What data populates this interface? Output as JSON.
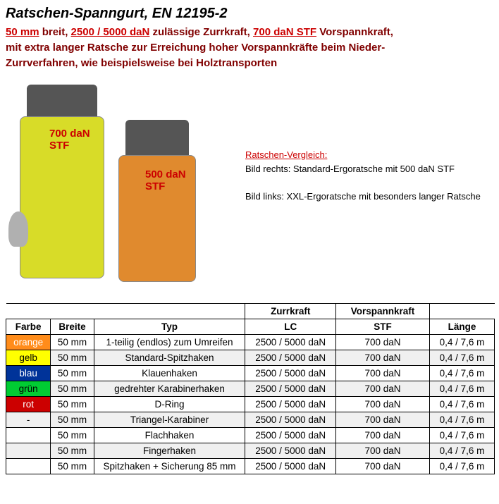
{
  "title": "Ratschen-Spanngurt, EN 12195-2",
  "subtitle": {
    "p1a": "50 mm",
    "p1b": " breit, ",
    "p1c": "2500 / 5000 daN",
    "p1d": " zulässige Zurrkraft, ",
    "p1e": "700 daN STF",
    "p1f": " Vorspannkraft,",
    "p2": "mit extra langer Ratsche zur Erreichung hoher Vorspannkräfte beim Nieder-",
    "p3": "Zurrverfahren, wie beispielsweise bei Holztransporten"
  },
  "labels": {
    "stf1a": "700 daN",
    "stf1b": "STF",
    "stf2a": "500 daN",
    "stf2b": "STF"
  },
  "desc": {
    "heading": "Ratschen-Vergleich:",
    "line1": "Bild rechts: Standard-Ergoratsche mit 500 daN STF",
    "line2": "Bild links: XXL-Ergoratsche mit besonders langer Ratsche"
  },
  "table": {
    "header_top": {
      "zurrkraft": "Zurrkraft",
      "vorspannkraft": "Vorspannkraft"
    },
    "header": {
      "farbe": "Farbe",
      "breite": "Breite",
      "typ": "Typ",
      "lc": "LC",
      "stf": "STF",
      "laenge": "Länge"
    },
    "rows": [
      {
        "farbe": "orange",
        "farbe_bg": "#ff8c1a",
        "farbe_fg": "#ffffff",
        "breite": "50 mm",
        "typ": "1-teilig (endlos) zum Umreifen",
        "lc": "2500 / 5000 daN",
        "stf": "700 daN",
        "laenge": "0,4 / 7,6 m",
        "alt": false
      },
      {
        "farbe": "gelb",
        "farbe_bg": "#ffff00",
        "farbe_fg": "#000000",
        "breite": "50 mm",
        "typ": "Standard-Spitzhaken",
        "lc": "2500 / 5000 daN",
        "stf": "700 daN",
        "laenge": "0,4 / 7,6 m",
        "alt": true
      },
      {
        "farbe": "blau",
        "farbe_bg": "#003399",
        "farbe_fg": "#ffffff",
        "breite": "50 mm",
        "typ": "Klauenhaken",
        "lc": "2500 / 5000 daN",
        "stf": "700 daN",
        "laenge": "0,4 / 7,6 m",
        "alt": false
      },
      {
        "farbe": "grün",
        "farbe_bg": "#00cc33",
        "farbe_fg": "#000000",
        "breite": "50 mm",
        "typ": "gedrehter Karabinerhaken",
        "lc": "2500 / 5000 daN",
        "stf": "700 daN",
        "laenge": "0,4 / 7,6 m",
        "alt": true
      },
      {
        "farbe": "rot",
        "farbe_bg": "#cc0000",
        "farbe_fg": "#ffffff",
        "breite": "50 mm",
        "typ": "D-Ring",
        "lc": "2500 / 5000 daN",
        "stf": "700 daN",
        "laenge": "0,4 / 7,6 m",
        "alt": false
      },
      {
        "farbe": "-",
        "farbe_bg": "#f0f0f0",
        "farbe_fg": "#000000",
        "breite": "50 mm",
        "typ": "Triangel-Karabiner",
        "lc": "2500 / 5000 daN",
        "stf": "700 daN",
        "laenge": "0,4 / 7,6 m",
        "alt": true
      },
      {
        "farbe": "",
        "farbe_bg": "#ffffff",
        "farbe_fg": "#000000",
        "breite": "50 mm",
        "typ": "Flachhaken",
        "lc": "2500 / 5000 daN",
        "stf": "700 daN",
        "laenge": "0,4 / 7,6 m",
        "alt": false
      },
      {
        "farbe": "",
        "farbe_bg": "#f0f0f0",
        "farbe_fg": "#000000",
        "breite": "50 mm",
        "typ": "Fingerhaken",
        "lc": "2500 / 5000 daN",
        "stf": "700 daN",
        "laenge": "0,4 / 7,6 m",
        "alt": true
      },
      {
        "farbe": "",
        "farbe_bg": "#ffffff",
        "farbe_fg": "#000000",
        "breite": "50 mm",
        "typ": "Spitzhaken + Sicherung 85 mm",
        "lc": "2500 / 5000 daN",
        "stf": "700 daN",
        "laenge": "0,4 / 7,6 m",
        "alt": false
      }
    ]
  }
}
